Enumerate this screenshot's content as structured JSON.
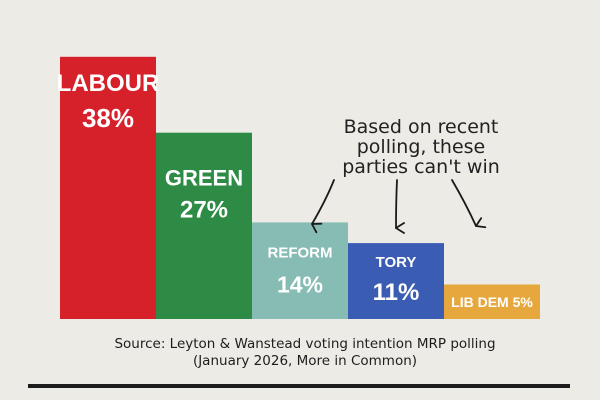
{
  "chart_data": {
    "type": "bar",
    "categories": [
      "LABOUR",
      "GREEN",
      "REFORM",
      "TORY",
      "LIB DEM"
    ],
    "values": [
      38,
      27,
      14,
      11,
      5
    ],
    "value_labels": [
      "38%",
      "27%",
      "14%",
      "11%",
      "5%"
    ],
    "colors": [
      "#d6202a",
      "#2e8b45",
      "#86bcb4",
      "#3a5db3",
      "#e6a83c"
    ],
    "title": "",
    "xlabel": "",
    "ylabel": "",
    "ylim": [
      0,
      40
    ],
    "grid": false,
    "legend": "none"
  },
  "annotation": {
    "lines": [
      "Based on recent",
      "polling, these",
      "parties can't win"
    ],
    "points_to": [
      "REFORM",
      "TORY",
      "LIB DEM"
    ]
  },
  "source": {
    "line1": "Source: Leyton & Wanstead voting intention MRP polling",
    "line2": "(January 2026, More in Common)"
  }
}
